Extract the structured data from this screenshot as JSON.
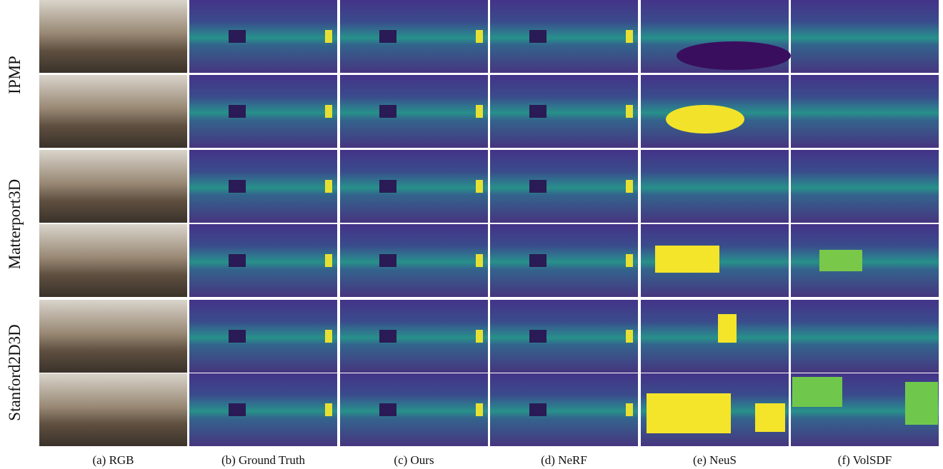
{
  "row_labels": [
    "IPMP",
    "Matterport3D",
    "Stanford2D3D"
  ],
  "column_captions": [
    "(a) RGB",
    "(b) Ground Truth",
    "(c) Ours",
    "(d) NeRF",
    "(e) NeuS",
    "(f) VolSDF"
  ]
}
